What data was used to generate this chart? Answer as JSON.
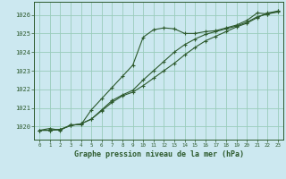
{
  "title": "Graphe pression niveau de la mer (hPa)",
  "bg_color": "#cce8f0",
  "grid_color": "#99ccbb",
  "line_color": "#2d5a2d",
  "xlim": [
    -0.5,
    23.5
  ],
  "ylim": [
    1019.3,
    1026.7
  ],
  "yticks": [
    1020,
    1021,
    1022,
    1023,
    1024,
    1025,
    1026
  ],
  "xticks": [
    0,
    1,
    2,
    3,
    4,
    5,
    6,
    7,
    8,
    9,
    10,
    11,
    12,
    13,
    14,
    15,
    16,
    17,
    18,
    19,
    20,
    21,
    22,
    23
  ],
  "series": [
    [
      1019.8,
      1019.9,
      1019.8,
      1020.1,
      1020.1,
      1020.9,
      1021.5,
      1022.1,
      1022.7,
      1023.3,
      1024.8,
      1025.2,
      1025.3,
      1025.25,
      1025.0,
      1025.0,
      1025.1,
      1025.15,
      1025.3,
      1025.45,
      1025.7,
      1026.1,
      1026.05,
      1026.2
    ],
    [
      1019.8,
      1019.8,
      1019.85,
      1020.05,
      1020.15,
      1020.4,
      1020.9,
      1021.4,
      1021.7,
      1021.95,
      1022.5,
      1023.0,
      1023.5,
      1024.0,
      1024.4,
      1024.7,
      1024.95,
      1025.1,
      1025.25,
      1025.4,
      1025.6,
      1025.9,
      1026.05,
      1026.15
    ],
    [
      1019.8,
      1019.8,
      1019.85,
      1020.05,
      1020.15,
      1020.4,
      1020.85,
      1021.3,
      1021.65,
      1021.85,
      1022.2,
      1022.6,
      1023.0,
      1023.4,
      1023.85,
      1024.25,
      1024.6,
      1024.85,
      1025.1,
      1025.35,
      1025.55,
      1025.85,
      1026.1,
      1026.2
    ]
  ]
}
